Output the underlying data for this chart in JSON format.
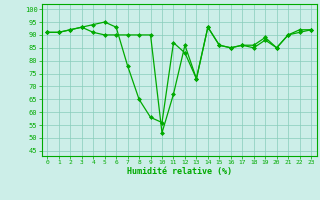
{
  "xlabel": "Humidité relative (%)",
  "background_color": "#cceee8",
  "grid_color": "#88ccbb",
  "line_color": "#00aa00",
  "marker_color": "#00aa00",
  "xlim": [
    -0.5,
    23.5
  ],
  "ylim": [
    43,
    102
  ],
  "yticks": [
    45,
    50,
    55,
    60,
    65,
    70,
    75,
    80,
    85,
    90,
    95,
    100
  ],
  "xticks": [
    0,
    1,
    2,
    3,
    4,
    5,
    6,
    7,
    8,
    9,
    10,
    11,
    12,
    13,
    14,
    15,
    16,
    17,
    18,
    19,
    20,
    21,
    22,
    23
  ],
  "series1": [
    91,
    91,
    92,
    93,
    94,
    95,
    93,
    78,
    65,
    58,
    56,
    87,
    83,
    73,
    93,
    86,
    85,
    86,
    85,
    88,
    85,
    90,
    92,
    92
  ],
  "series2": [
    91,
    91,
    92,
    93,
    91,
    90,
    90,
    90,
    90,
    90,
    52,
    67,
    86,
    73,
    93,
    86,
    85,
    86,
    86,
    89,
    85,
    90,
    91,
    92
  ]
}
